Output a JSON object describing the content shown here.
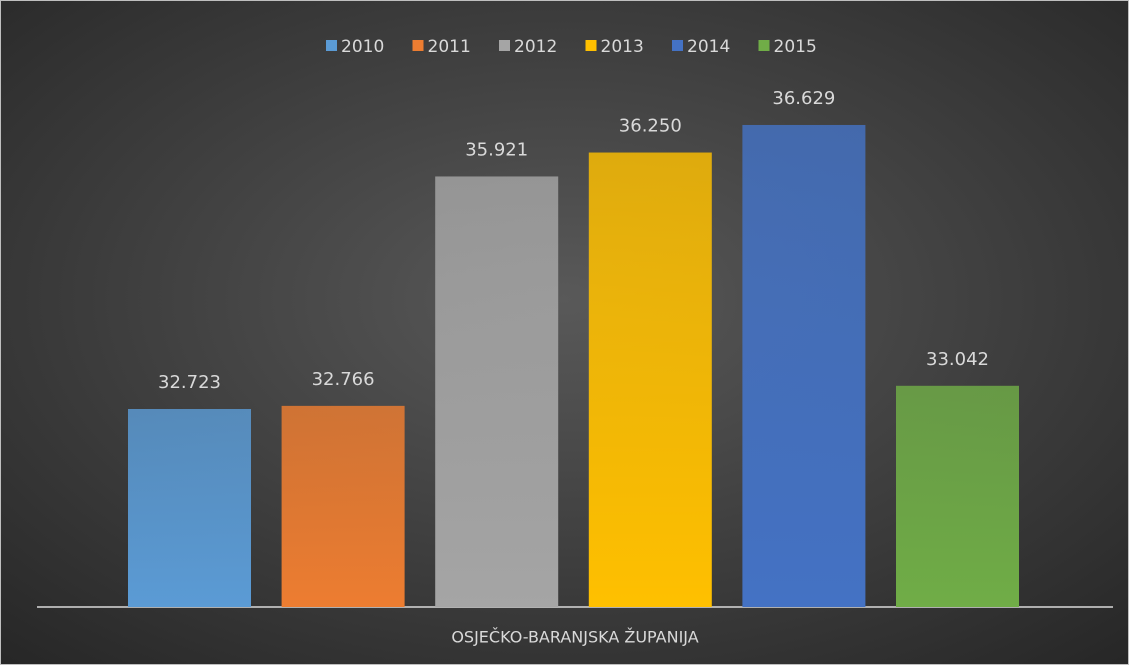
{
  "chart_data": {
    "type": "bar",
    "categories": [
      "OSJEČKO-BARANJSKA ŽUPANIJA"
    ],
    "series": [
      {
        "name": "2010",
        "color": "#5b9bd5",
        "values": [
          32723
        ],
        "value_labels": [
          "32.723"
        ]
      },
      {
        "name": "2011",
        "color": "#ed7d31",
        "values": [
          32766
        ],
        "value_labels": [
          "32.766"
        ]
      },
      {
        "name": "2012",
        "color": "#a5a5a5",
        "values": [
          35921
        ],
        "value_labels": [
          "35.921"
        ]
      },
      {
        "name": "2013",
        "color": "#ffc000",
        "values": [
          36250
        ],
        "value_labels": [
          "36.250"
        ]
      },
      {
        "name": "2014",
        "color": "#4472c4",
        "values": [
          36629
        ],
        "value_labels": [
          "36.629"
        ]
      },
      {
        "name": "2015",
        "color": "#70ad47",
        "values": [
          33042
        ],
        "value_labels": [
          "33.042"
        ]
      }
    ],
    "ylim": [
      30000,
      37000
    ],
    "legend": "top"
  }
}
